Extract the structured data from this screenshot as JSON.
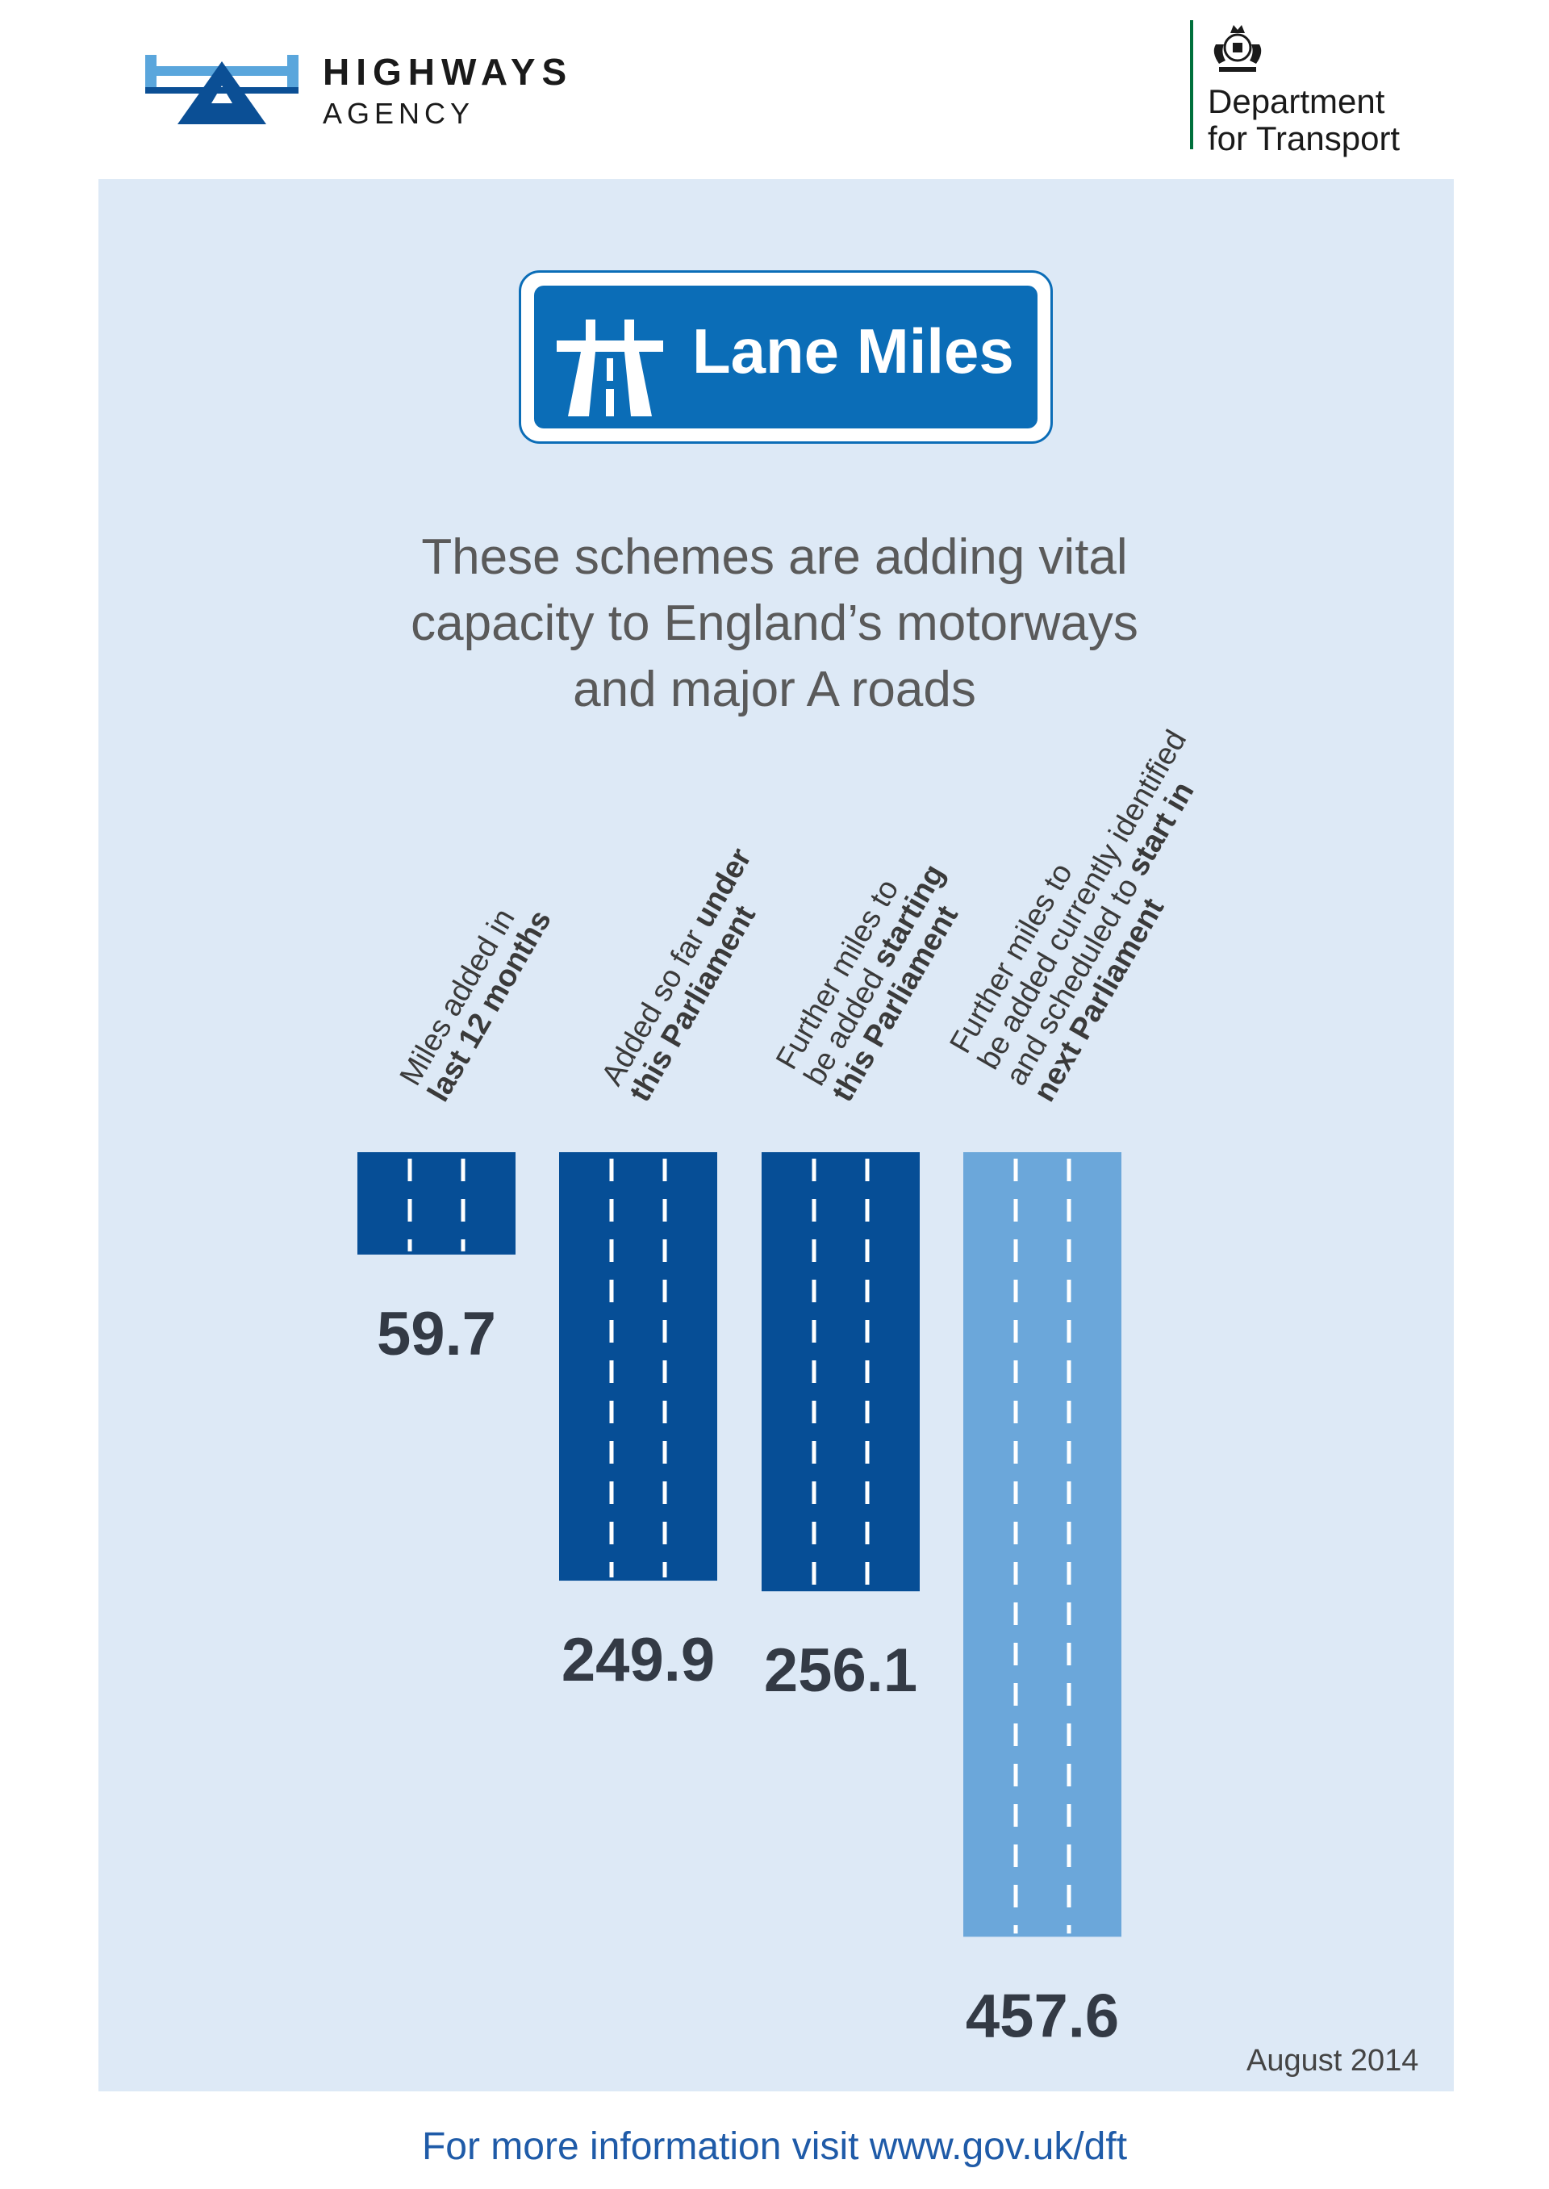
{
  "header": {
    "agency_name": "HIGHWAYS",
    "agency_sub": "AGENCY",
    "dept_line1": "Department",
    "dept_line2": "for Transport"
  },
  "sign": {
    "title": "Lane Miles"
  },
  "intro": [
    "These schemes are adding vital",
    "capacity to England’s motorways",
    "and major A roads"
  ],
  "chart_data": {
    "type": "bar",
    "title": "Lane Miles",
    "categories": [
      {
        "lines": [
          [
            {
              "t": "Miles added in",
              "b": false
            }
          ],
          [
            {
              "t": "last 12 months",
              "b": true
            }
          ]
        ]
      },
      {
        "lines": [
          [
            {
              "t": "Added so far ",
              "b": false
            },
            {
              "t": "under",
              "b": true
            }
          ],
          [
            {
              "t": "this Parliament",
              "b": true
            }
          ]
        ]
      },
      {
        "lines": [
          [
            {
              "t": "Further miles to",
              "b": false
            }
          ],
          [
            {
              "t": "be added ",
              "b": false
            },
            {
              "t": "starting",
              "b": true
            }
          ],
          [
            {
              "t": "this Parliament",
              "b": true
            }
          ]
        ]
      },
      {
        "lines": [
          [
            {
              "t": "Further miles to",
              "b": false
            }
          ],
          [
            {
              "t": "be added currently identified",
              "b": false
            }
          ],
          [
            {
              "t": "and scheduled to ",
              "b": false
            },
            {
              "t": "start in",
              "b": true
            }
          ],
          [
            {
              "t": "next Parliament",
              "b": true
            }
          ]
        ]
      }
    ],
    "values": [
      59.7,
      249.9,
      256.1,
      457.6
    ],
    "value_labels": [
      "59.7",
      "249.9",
      "256.1",
      "457.6"
    ],
    "colors": [
      "#064e96",
      "#064e96",
      "#064e96",
      "#6ba7da"
    ],
    "lane_marking_color": "#ffffff",
    "axes": "none",
    "grid": false,
    "legend": "none"
  },
  "date": "August 2014",
  "footer": "For more information visit www.gov.uk/dft"
}
